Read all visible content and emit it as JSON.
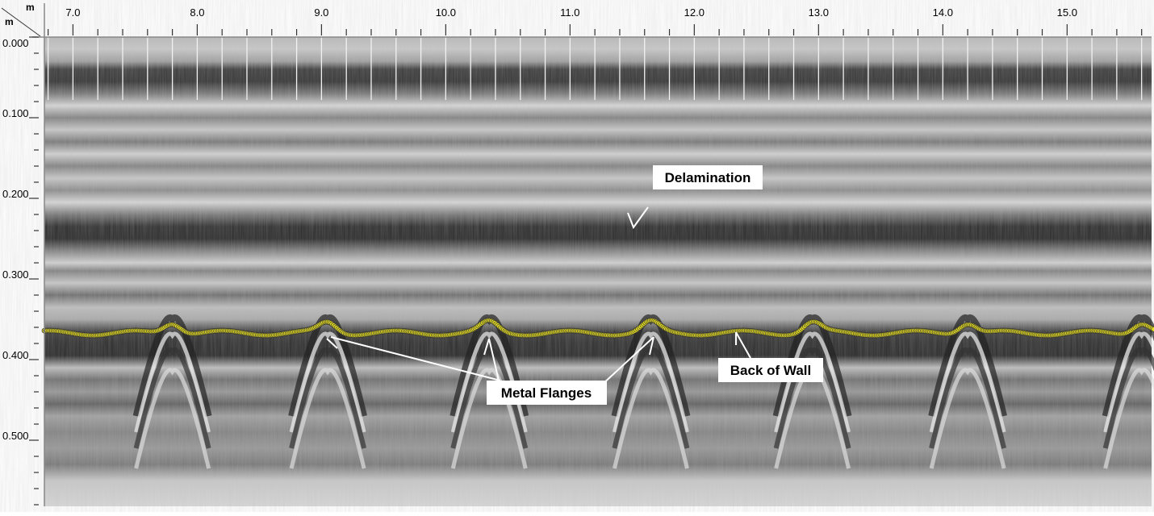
{
  "chart_data": {
    "type": "heatmap",
    "x_unit": "m",
    "y_unit": "m",
    "xlim": [
      6.77,
      15.68
    ],
    "ylim": [
      0.0,
      0.582
    ],
    "y_inverted": true,
    "x_ticks": [
      "7.0",
      "8.0",
      "9.0",
      "10.0",
      "11.0",
      "12.0",
      "13.0",
      "14.0",
      "15.0"
    ],
    "x_tick_values": [
      7,
      8,
      9,
      10,
      11,
      12,
      13,
      14,
      15
    ],
    "x_minor_step": 0.2,
    "y_ticks": [
      "0.000",
      "0.100",
      "0.200",
      "0.300",
      "0.400",
      "0.500"
    ],
    "y_tick_values": [
      0,
      0.1,
      0.2,
      0.3,
      0.4,
      0.5
    ],
    "y_minor_step": 0.02,
    "colormap": "grayscale",
    "back_of_wall_depth": 0.367,
    "hyperbola_positions": [
      7.8,
      9.05,
      10.35,
      11.65,
      12.95,
      14.2,
      15.6
    ],
    "pick_color": "#e8e020",
    "annotations": [
      {
        "text": "Delamination",
        "x": 11.5,
        "y": 0.24
      },
      {
        "text": "Metal Flanges",
        "targets_x": [
          9.05,
          10.35,
          11.65
        ],
        "y": 0.37
      },
      {
        "text": "Back of Wall",
        "x": 12.3,
        "y": 0.365
      }
    ]
  }
}
